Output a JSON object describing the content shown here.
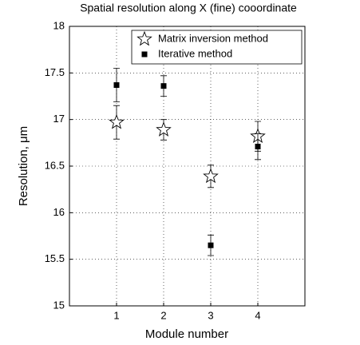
{
  "chart_data": {
    "type": "scatter",
    "title": "Spatial resolution along X (fine) cooordinate",
    "x_label": "Module number",
    "y_label": "Resolution, μm",
    "x": [
      1,
      2,
      3,
      4
    ],
    "series": [
      {
        "name": "Matrix inversion method",
        "marker": "star",
        "color": "#000000",
        "values": [
          16.97,
          16.89,
          16.39,
          16.82
        ],
        "errors": [
          0.18,
          0.11,
          0.12,
          0.16
        ]
      },
      {
        "name": "Iterative method",
        "marker": "square",
        "color": "#000000",
        "values": [
          17.37,
          17.36,
          15.65,
          16.71
        ],
        "errors": [
          0.18,
          0.11,
          0.11,
          0.14
        ]
      }
    ],
    "xlim": [
      0,
      5
    ],
    "xticks": [
      1,
      2,
      3,
      4
    ],
    "ylim": [
      15,
      18
    ],
    "yticks": [
      15,
      15.5,
      16,
      16.5,
      17,
      17.5,
      18
    ],
    "grid": true,
    "legend": "upper right"
  }
}
